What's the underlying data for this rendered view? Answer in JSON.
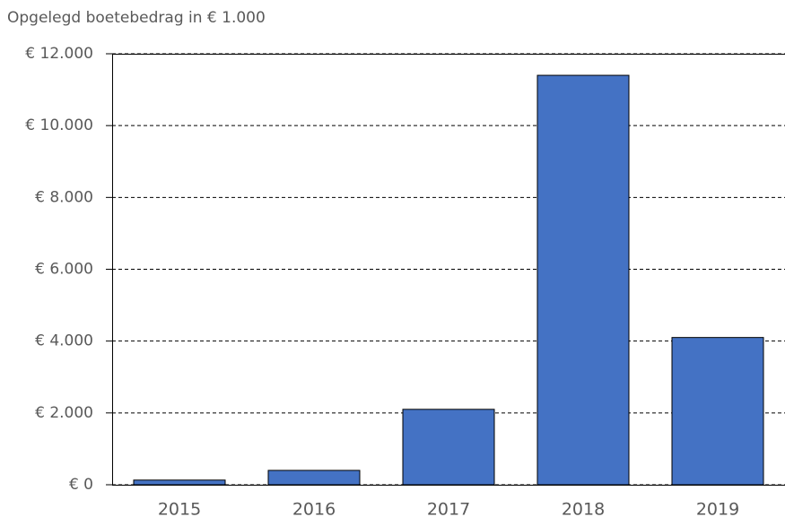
{
  "chart_data": {
    "type": "bar",
    "y_label": "Opgelegd boetebedrag in € 1.000",
    "categories": [
      "2015",
      "2016",
      "2017",
      "2018",
      "2019"
    ],
    "values": [
      130,
      400,
      2100,
      11400,
      4100
    ],
    "color": "#4472c4",
    "ylim": [
      0,
      12000
    ],
    "yticks": [
      {
        "value": 0,
        "label": "€ 0"
      },
      {
        "value": 2000,
        "label": "€ 2.000"
      },
      {
        "value": 4000,
        "label": "€ 4.000"
      },
      {
        "value": 6000,
        "label": "€ 6.000"
      },
      {
        "value": 8000,
        "label": "€ 8.000"
      },
      {
        "value": 10000,
        "label": "€ 10.000"
      },
      {
        "value": 12000,
        "label": "€ 12.000"
      }
    ],
    "grid": true
  }
}
